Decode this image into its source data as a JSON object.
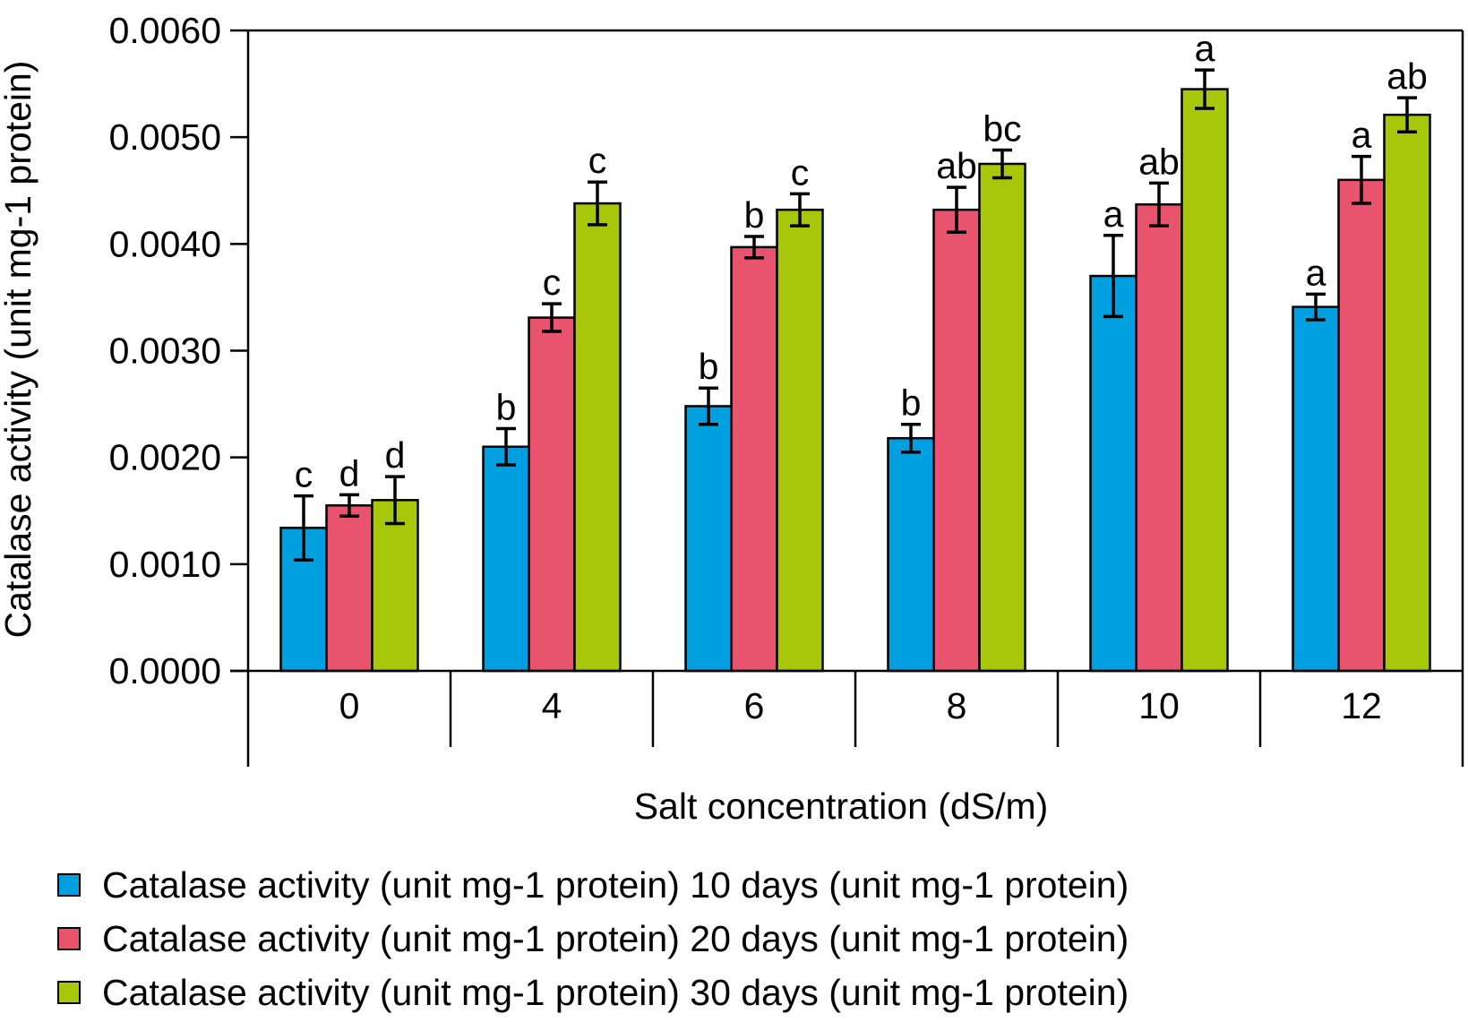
{
  "chart_data": {
    "type": "bar",
    "title": "",
    "xlabel": "Salt concentration (dS/m)",
    "ylabel": "Catalase activity (unit mg-1 protein)",
    "ylim": [
      0,
      0.006
    ],
    "yticks": [
      "0.0000",
      "0.0010",
      "0.0020",
      "0.0030",
      "0.0040",
      "0.0050",
      "0.0060"
    ],
    "categories": [
      "0",
      "4",
      "6",
      "8",
      "10",
      "12"
    ],
    "legend_position": "bottom",
    "grid": false,
    "series": [
      {
        "name": "Catalase activity (unit mg-1 protein) 10 days (unit mg-1 protein)",
        "color": "#009fe0",
        "values": [
          0.00134,
          0.0021,
          0.00248,
          0.00218,
          0.0037,
          0.00341
        ],
        "errors": [
          0.0003,
          0.00017,
          0.00017,
          0.00013,
          0.00038,
          0.00012
        ],
        "labels": [
          "c",
          "b",
          "b",
          "b",
          "a",
          "a"
        ]
      },
      {
        "name": "Catalase activity (unit mg-1 protein) 20 days (unit mg-1 protein)",
        "color": "#e8536e",
        "values": [
          0.00155,
          0.00331,
          0.00397,
          0.00432,
          0.00437,
          0.0046
        ],
        "errors": [
          0.0001,
          0.00013,
          0.0001,
          0.00021,
          0.0002,
          0.00022
        ],
        "labels": [
          "d",
          "c",
          "b",
          "ab",
          "ab",
          "a"
        ]
      },
      {
        "name": "Catalase activity (unit mg-1 protein) 30 days (unit mg-1 protein)",
        "color": "#a8c60a",
        "values": [
          0.0016,
          0.00438,
          0.00432,
          0.00475,
          0.00545,
          0.00521
        ],
        "errors": [
          0.00022,
          0.0002,
          0.00015,
          0.00013,
          0.00018,
          0.00016
        ],
        "labels": [
          "d",
          "c",
          "c",
          "bc",
          "a",
          "ab"
        ]
      }
    ]
  }
}
